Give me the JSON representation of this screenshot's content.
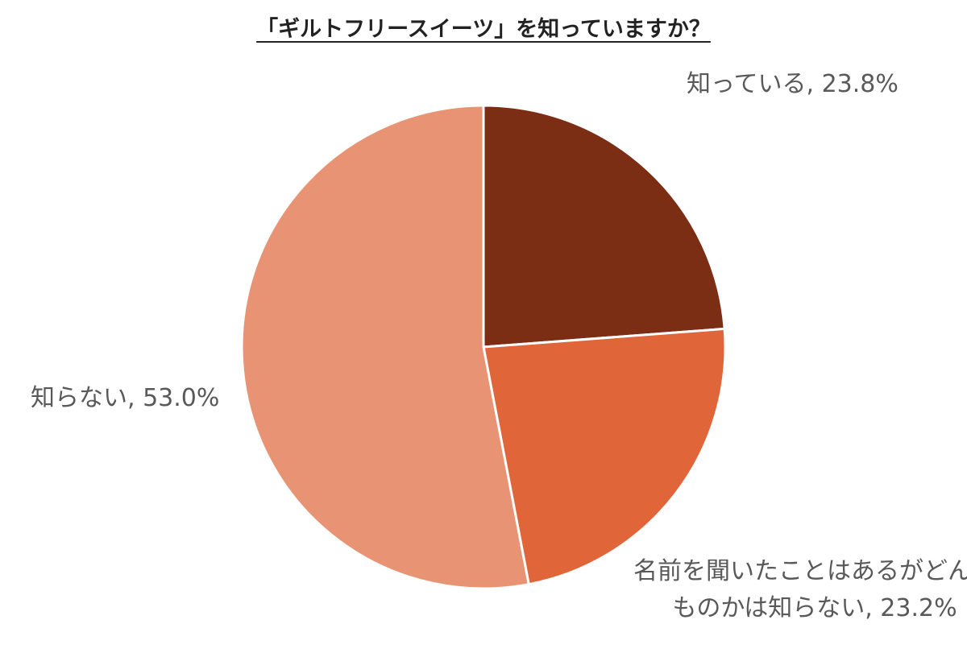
{
  "chart_data": {
    "type": "pie",
    "title": "「ギルトフリースイーツ」を知っていますか？",
    "start_angle_deg": 0,
    "direction": "clockwise",
    "slices": [
      {
        "label": "知っている",
        "value": 23.8,
        "display": "23.8%",
        "color": "#7b2e14",
        "label_lines": [
          "知っている, 23.8%"
        ]
      },
      {
        "label": "名前を聞いたことはあるがどんなものかは知らない",
        "value": 23.2,
        "display": "23.2%",
        "color": "#e0663a",
        "label_lines": [
          "名前を聞いたことはあるがどんな",
          "ものかは知らない, 23.2%"
        ]
      },
      {
        "label": "知らない",
        "value": 53.0,
        "display": "53.0%",
        "color": "#e89474",
        "label_lines": [
          "知らない, 53.0%"
        ]
      }
    ]
  }
}
